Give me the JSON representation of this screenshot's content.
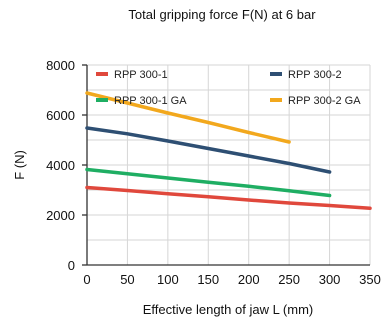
{
  "chart_data": {
    "type": "line",
    "title": "Total gripping force F(N) at 6 bar",
    "xlabel": "Effective length of jaw L (mm)",
    "ylabel": "F (N)",
    "xlim": [
      0,
      350
    ],
    "ylim": [
      0,
      8000
    ],
    "xticks": [
      "0",
      "50",
      "100",
      "150",
      "200",
      "250",
      "300",
      "350"
    ],
    "yticks": [
      "0",
      "2000",
      "4000",
      "6000",
      "8000"
    ],
    "grid": true,
    "legend": "top",
    "series": [
      {
        "name": "RPP 300-1",
        "color": "#e0483c",
        "x": [
          0,
          50,
          100,
          150,
          200,
          250,
          300,
          350
        ],
        "y": [
          3100,
          2980,
          2850,
          2730,
          2600,
          2480,
          2380,
          2270
        ]
      },
      {
        "name": "RPP 300-2",
        "color": "#2e4f73",
        "x": [
          0,
          50,
          100,
          150,
          200,
          250,
          300
        ],
        "y": [
          5480,
          5250,
          4960,
          4660,
          4360,
          4060,
          3720
        ]
      },
      {
        "name": "RPP 300-1 GA",
        "color": "#1fae63",
        "x": [
          0,
          50,
          100,
          150,
          200,
          250,
          300
        ],
        "y": [
          3820,
          3650,
          3480,
          3310,
          3150,
          2970,
          2780
        ]
      },
      {
        "name": "RPP 300-2 GA",
        "color": "#f2a81d",
        "x": [
          0,
          50,
          100,
          150,
          200,
          250
        ],
        "y": [
          6880,
          6480,
          6080,
          5700,
          5300,
          4920
        ]
      }
    ]
  }
}
